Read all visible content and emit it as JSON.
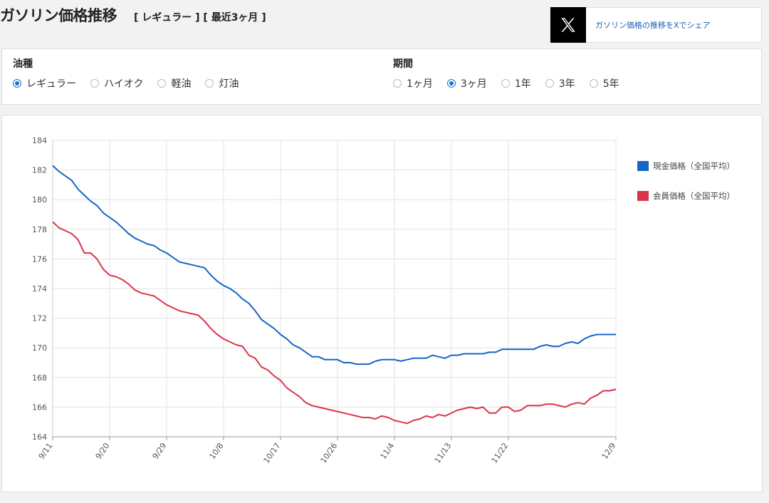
{
  "header": {
    "title": "ガソリン価格推移",
    "subtitle": "[ レギュラー ] [ 最近3ヶ月 ]"
  },
  "share": {
    "icon": "x-logo-icon",
    "label": "ガソリン価格の推移をXでシェア"
  },
  "filters": {
    "fuel": {
      "title": "油種",
      "options": [
        {
          "label": "レギュラー",
          "selected": true
        },
        {
          "label": "ハイオク",
          "selected": false
        },
        {
          "label": "軽油",
          "selected": false
        },
        {
          "label": "灯油",
          "selected": false
        }
      ]
    },
    "period": {
      "title": "期間",
      "options": [
        {
          "label": "1ヶ月",
          "selected": false
        },
        {
          "label": "3ヶ月",
          "selected": true
        },
        {
          "label": "1年",
          "selected": false
        },
        {
          "label": "3年",
          "selected": false
        },
        {
          "label": "5年",
          "selected": false
        }
      ]
    }
  },
  "chart_data": {
    "type": "line",
    "ylim": [
      164,
      184
    ],
    "yticks": [
      164,
      166,
      168,
      170,
      172,
      174,
      176,
      178,
      180,
      182,
      184
    ],
    "xlim": [
      0,
      89
    ],
    "xticks": [
      {
        "label": "9/11",
        "day": 0
      },
      {
        "label": "9/20",
        "day": 9
      },
      {
        "label": "9/29",
        "day": 18
      },
      {
        "label": "10/8",
        "day": 27
      },
      {
        "label": "10/17",
        "day": 36
      },
      {
        "label": "10/26",
        "day": 45
      },
      {
        "label": "11/4",
        "day": 54
      },
      {
        "label": "11/13",
        "day": 63
      },
      {
        "label": "11/22",
        "day": 72
      },
      {
        "label": "12/9",
        "day": 89
      }
    ],
    "grid": true,
    "legend": "right",
    "series": [
      {
        "name": "現金価格（全国平均）",
        "color": "#1466c8",
        "points": [
          [
            0,
            182.3
          ],
          [
            1,
            181.9
          ],
          [
            2,
            181.6
          ],
          [
            3,
            181.3
          ],
          [
            4,
            180.7
          ],
          [
            5,
            180.3
          ],
          [
            6,
            179.9
          ],
          [
            7,
            179.6
          ],
          [
            8,
            179.1
          ],
          [
            9,
            178.8
          ],
          [
            10,
            178.5
          ],
          [
            11,
            178.1
          ],
          [
            12,
            177.7
          ],
          [
            13,
            177.4
          ],
          [
            14,
            177.2
          ],
          [
            15,
            177.0
          ],
          [
            16,
            176.9
          ],
          [
            17,
            176.6
          ],
          [
            18,
            176.4
          ],
          [
            19,
            176.1
          ],
          [
            20,
            175.8
          ],
          [
            21,
            175.7
          ],
          [
            22,
            175.6
          ],
          [
            23,
            175.5
          ],
          [
            24,
            175.4
          ],
          [
            25,
            174.9
          ],
          [
            26,
            174.5
          ],
          [
            27,
            174.2
          ],
          [
            28,
            174.0
          ],
          [
            29,
            173.7
          ],
          [
            30,
            173.3
          ],
          [
            31,
            173.0
          ],
          [
            32,
            172.5
          ],
          [
            33,
            171.9
          ],
          [
            34,
            171.6
          ],
          [
            35,
            171.3
          ],
          [
            36,
            170.9
          ],
          [
            37,
            170.6
          ],
          [
            38,
            170.2
          ],
          [
            39,
            170.0
          ],
          [
            40,
            169.7
          ],
          [
            41,
            169.4
          ],
          [
            42,
            169.4
          ],
          [
            43,
            169.2
          ],
          [
            44,
            169.2
          ],
          [
            45,
            169.2
          ],
          [
            46,
            169.0
          ],
          [
            47,
            169.0
          ],
          [
            48,
            168.9
          ],
          [
            49,
            168.9
          ],
          [
            50,
            168.9
          ],
          [
            51,
            169.1
          ],
          [
            52,
            169.2
          ],
          [
            53,
            169.2
          ],
          [
            54,
            169.2
          ],
          [
            55,
            169.1
          ],
          [
            56,
            169.2
          ],
          [
            57,
            169.3
          ],
          [
            58,
            169.3
          ],
          [
            59,
            169.3
          ],
          [
            60,
            169.5
          ],
          [
            61,
            169.4
          ],
          [
            62,
            169.3
          ],
          [
            63,
            169.5
          ],
          [
            64,
            169.5
          ],
          [
            65,
            169.6
          ],
          [
            66,
            169.6
          ],
          [
            67,
            169.6
          ],
          [
            68,
            169.6
          ],
          [
            69,
            169.7
          ],
          [
            70,
            169.7
          ],
          [
            71,
            169.9
          ],
          [
            72,
            169.9
          ],
          [
            73,
            169.9
          ],
          [
            74,
            169.9
          ],
          [
            75,
            169.9
          ],
          [
            76,
            169.9
          ],
          [
            77,
            170.1
          ],
          [
            78,
            170.2
          ],
          [
            79,
            170.1
          ],
          [
            80,
            170.1
          ],
          [
            81,
            170.3
          ],
          [
            82,
            170.4
          ],
          [
            83,
            170.3
          ],
          [
            84,
            170.6
          ],
          [
            85,
            170.8
          ],
          [
            86,
            170.9
          ],
          [
            87,
            170.9
          ],
          [
            88,
            170.9
          ],
          [
            89,
            170.9
          ]
        ]
      },
      {
        "name": "会員価格（全国平均）",
        "color": "#d9354a",
        "points": [
          [
            0,
            178.5
          ],
          [
            1,
            178.1
          ],
          [
            2,
            177.9
          ],
          [
            3,
            177.7
          ],
          [
            4,
            177.3
          ],
          [
            5,
            176.4
          ],
          [
            6,
            176.4
          ],
          [
            7,
            176.0
          ],
          [
            8,
            175.3
          ],
          [
            9,
            174.9
          ],
          [
            10,
            174.8
          ],
          [
            11,
            174.6
          ],
          [
            12,
            174.3
          ],
          [
            13,
            173.9
          ],
          [
            14,
            173.7
          ],
          [
            15,
            173.6
          ],
          [
            16,
            173.5
          ],
          [
            17,
            173.2
          ],
          [
            18,
            172.9
          ],
          [
            19,
            172.7
          ],
          [
            20,
            172.5
          ],
          [
            21,
            172.4
          ],
          [
            22,
            172.3
          ],
          [
            23,
            172.2
          ],
          [
            24,
            171.8
          ],
          [
            25,
            171.3
          ],
          [
            26,
            170.9
          ],
          [
            27,
            170.6
          ],
          [
            28,
            170.4
          ],
          [
            29,
            170.2
          ],
          [
            30,
            170.1
          ],
          [
            31,
            169.5
          ],
          [
            32,
            169.3
          ],
          [
            33,
            168.7
          ],
          [
            34,
            168.5
          ],
          [
            35,
            168.1
          ],
          [
            36,
            167.8
          ],
          [
            37,
            167.3
          ],
          [
            38,
            167.0
          ],
          [
            39,
            166.7
          ],
          [
            40,
            166.3
          ],
          [
            41,
            166.1
          ],
          [
            42,
            166.0
          ],
          [
            43,
            165.9
          ],
          [
            44,
            165.8
          ],
          [
            45,
            165.7
          ],
          [
            46,
            165.6
          ],
          [
            47,
            165.5
          ],
          [
            48,
            165.4
          ],
          [
            49,
            165.3
          ],
          [
            50,
            165.3
          ],
          [
            51,
            165.2
          ],
          [
            52,
            165.4
          ],
          [
            53,
            165.3
          ],
          [
            54,
            165.1
          ],
          [
            55,
            165.0
          ],
          [
            56,
            164.9
          ],
          [
            57,
            165.1
          ],
          [
            58,
            165.2
          ],
          [
            59,
            165.4
          ],
          [
            60,
            165.3
          ],
          [
            61,
            165.5
          ],
          [
            62,
            165.4
          ],
          [
            63,
            165.6
          ],
          [
            64,
            165.8
          ],
          [
            65,
            165.9
          ],
          [
            66,
            166.0
          ],
          [
            67,
            165.9
          ],
          [
            68,
            166.0
          ],
          [
            69,
            165.6
          ],
          [
            70,
            165.6
          ],
          [
            71,
            166.0
          ],
          [
            72,
            166.0
          ],
          [
            73,
            165.7
          ],
          [
            74,
            165.8
          ],
          [
            75,
            166.1
          ],
          [
            76,
            166.1
          ],
          [
            77,
            166.1
          ],
          [
            78,
            166.2
          ],
          [
            79,
            166.2
          ],
          [
            80,
            166.1
          ],
          [
            81,
            166.0
          ],
          [
            82,
            166.2
          ],
          [
            83,
            166.3
          ],
          [
            84,
            166.2
          ],
          [
            85,
            166.6
          ],
          [
            86,
            166.8
          ],
          [
            87,
            167.1
          ],
          [
            88,
            167.1
          ],
          [
            89,
            167.2
          ]
        ]
      }
    ]
  }
}
